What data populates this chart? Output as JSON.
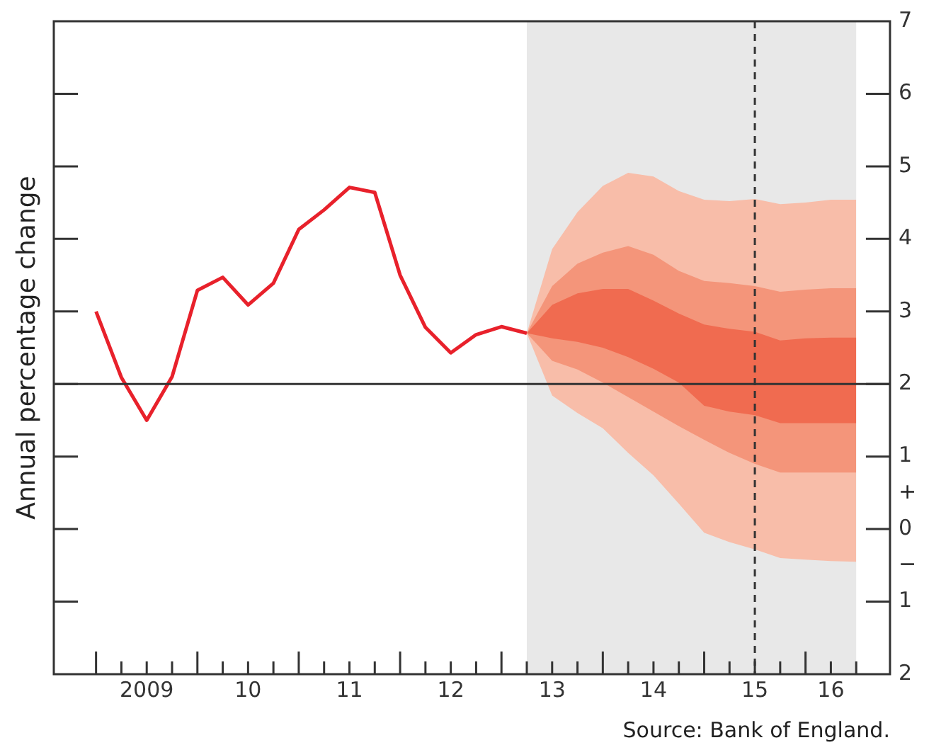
{
  "chart_data": {
    "type": "line",
    "ylabel": "Annual percentage change",
    "xlim": [
      "2008-08",
      "2016-11"
    ],
    "ylim": [
      -2,
      7
    ],
    "yticks": [
      7,
      6,
      5,
      4,
      3,
      2,
      1,
      0,
      {
        "value": -1,
        "label": "1"
      },
      {
        "value": -2,
        "label": "2"
      }
    ],
    "xticks": [
      {
        "value": "2009-01",
        "label": null
      },
      {
        "value": "2009-04",
        "label": null
      },
      {
        "value": "2009-07",
        "label": "2009"
      },
      {
        "value": "2009-10",
        "label": null
      },
      {
        "value": "2010-01",
        "label": null
      },
      {
        "value": "2010-04",
        "label": null
      },
      {
        "value": "2010-07",
        "label": "10"
      },
      {
        "value": "2010-10",
        "label": null
      },
      {
        "value": "2011-01",
        "label": null
      },
      {
        "value": "2011-04",
        "label": null
      },
      {
        "value": "2011-07",
        "label": "11"
      },
      {
        "value": "2011-10",
        "label": null
      },
      {
        "value": "2012-01",
        "label": null
      },
      {
        "value": "2012-04",
        "label": null
      },
      {
        "value": "2012-07",
        "label": "12"
      },
      {
        "value": "2012-10",
        "label": null
      },
      {
        "value": "2013-01",
        "label": null
      },
      {
        "value": "2013-04",
        "label": null
      },
      {
        "value": "2013-07",
        "label": "13"
      },
      {
        "value": "2013-10",
        "label": null
      },
      {
        "value": "2014-01",
        "label": null
      },
      {
        "value": "2014-04",
        "label": null
      },
      {
        "value": "2014-07",
        "label": "14"
      },
      {
        "value": "2014-10",
        "label": null
      },
      {
        "value": "2015-01",
        "label": null
      },
      {
        "value": "2015-04",
        "label": null
      },
      {
        "value": "2015-07",
        "label": "15"
      },
      {
        "value": "2015-10",
        "label": null
      },
      {
        "value": "2016-01",
        "label": null
      },
      {
        "value": "2016-04",
        "label": "16"
      },
      {
        "value": "2016-07",
        "label": null
      }
    ],
    "series": [
      {
        "color": "#e8212b",
        "x": [
          "2009-01",
          "2009-04",
          "2009-07",
          "2009-10",
          "2010-01",
          "2010-04",
          "2010-07",
          "2010-10",
          "2011-01",
          "2011-04",
          "2011-07",
          "2011-10",
          "2012-01",
          "2012-04",
          "2012-07",
          "2012-10",
          "2013-01",
          "2013-04"
        ],
        "values": [
          3.0,
          2.09,
          1.5,
          2.1,
          3.29,
          3.47,
          3.09,
          3.39,
          4.13,
          4.4,
          4.71,
          4.64,
          3.5,
          2.78,
          2.43,
          2.68,
          2.79,
          2.7
        ]
      },
      {
        "type": "area",
        "color": "#f06b50",
        "x": [
          "2013-04",
          "2013-07",
          "2013-10",
          "2014-01",
          "2014-04",
          "2014-07",
          "2014-10",
          "2015-01",
          "2015-04",
          "2015-07",
          "2015-10",
          "2016-01",
          "2016-04",
          "2016-07"
        ],
        "values": [
          null,
          null,
          null,
          null,
          null,
          null,
          null,
          null,
          null,
          null,
          null,
          null,
          null,
          null
        ],
        "lower": [
          2.7,
          2.63,
          2.58,
          2.5,
          2.37,
          2.21,
          2.02,
          1.7,
          1.62,
          1.57,
          1.46,
          1.46,
          1.46,
          1.46
        ],
        "upper": [
          2.7,
          3.09,
          3.25,
          3.31,
          3.31,
          3.15,
          2.97,
          2.82,
          2.76,
          2.72,
          2.6,
          2.63,
          2.64,
          2.64
        ]
      },
      {
        "type": "area",
        "color": "#f4957a",
        "x": [
          "2013-04",
          "2013-07",
          "2013-10",
          "2014-01",
          "2014-04",
          "2014-07",
          "2014-10",
          "2015-01",
          "2015-04",
          "2015-07",
          "2015-10",
          "2016-01",
          "2016-04",
          "2016-07"
        ],
        "values": [
          null,
          null,
          null,
          null,
          null,
          null,
          null,
          null,
          null,
          null,
          null,
          null,
          null,
          null
        ],
        "lower": [
          2.7,
          2.32,
          2.2,
          2.02,
          1.82,
          1.62,
          1.42,
          1.23,
          1.05,
          0.9,
          0.78,
          0.78,
          0.78,
          0.78
        ],
        "upper": [
          2.7,
          3.35,
          3.66,
          3.81,
          3.9,
          3.78,
          3.56,
          3.42,
          3.39,
          3.35,
          3.27,
          3.3,
          3.32,
          3.32
        ]
      },
      {
        "type": "area",
        "color": "#f8bda9",
        "x": [
          "2013-04",
          "2013-07",
          "2013-10",
          "2014-01",
          "2014-04",
          "2014-07",
          "2014-10",
          "2015-01",
          "2015-04",
          "2015-07",
          "2015-10",
          "2016-01",
          "2016-04",
          "2016-07"
        ],
        "values": [
          null,
          null,
          null,
          null,
          null,
          null,
          null,
          null,
          null,
          null,
          null,
          null,
          null,
          null
        ],
        "lower": [
          2.7,
          1.84,
          1.6,
          1.39,
          1.05,
          0.74,
          0.35,
          -0.05,
          -0.18,
          -0.28,
          -0.4,
          -0.42,
          -0.44,
          -0.45
        ],
        "upper": [
          2.7,
          3.86,
          4.37,
          4.73,
          4.91,
          4.86,
          4.66,
          4.54,
          4.52,
          4.55,
          4.48,
          4.5,
          4.54,
          4.54
        ]
      }
    ],
    "bands": [
      {
        "axis": "x",
        "from": "2013-04",
        "to": "2016-07",
        "color": "#e8e8e8"
      }
    ],
    "ref_lines": [
      {
        "axis": "y",
        "value": 2,
        "color": "#333333",
        "line_style": "solid"
      },
      {
        "axis": "x",
        "value": "2015-07",
        "color": "#333333",
        "line_style": "dashed"
      }
    ],
    "grid": false,
    "legend": false,
    "marker": "none",
    "annotations": [
      "+",
      "−",
      "Source: Bank of England."
    ]
  }
}
